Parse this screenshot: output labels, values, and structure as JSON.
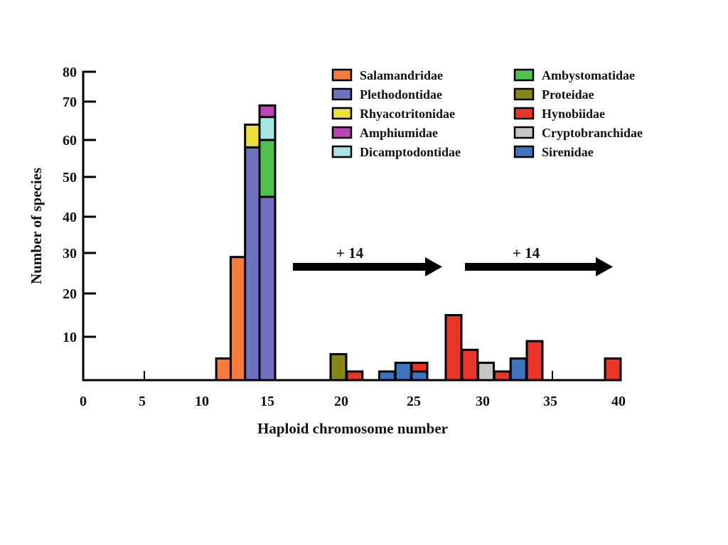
{
  "chart_data": {
    "type": "bar",
    "stacked": true,
    "title": "",
    "xlabel": "Haploid chromosome number",
    "ylabel": "Number of species",
    "xlim": [
      0,
      40
    ],
    "ylim": [
      0,
      80
    ],
    "x_ticks": [
      "0",
      "5",
      "10",
      "15",
      "20",
      "25",
      "30",
      "35",
      "40"
    ],
    "y_ticks": [
      "10",
      "20",
      "30",
      "40",
      "50",
      "60",
      "70",
      "80"
    ],
    "grid": false,
    "legend_position": "top-right",
    "series": [
      {
        "name": "Salamandridae",
        "color": "#f47c3c",
        "points": [
          {
            "x": 12,
            "y": 5
          },
          {
            "x": 13,
            "y": 29
          }
        ]
      },
      {
        "name": "Plethodontidae",
        "color": "#6f72c0",
        "points": [
          {
            "x": 14,
            "y": 58
          },
          {
            "x": 15,
            "y": 45
          }
        ]
      },
      {
        "name": "Rhyacotritonidae",
        "color": "#ede03a",
        "points": [
          {
            "x": 14,
            "y": 6
          }
        ]
      },
      {
        "name": "Amphiumidae",
        "color": "#b945b5",
        "points": [
          {
            "x": 15,
            "y": 3
          }
        ]
      },
      {
        "name": "Dicamptodontidae",
        "color": "#a6e6e2",
        "points": [
          {
            "x": 15,
            "y": 6
          }
        ]
      },
      {
        "name": "Ambystomatidae",
        "color": "#4fc24f",
        "points": [
          {
            "x": 15,
            "y": 15
          }
        ]
      },
      {
        "name": "Proteidae",
        "color": "#86861a",
        "points": [
          {
            "x": 20,
            "y": 6
          }
        ]
      },
      {
        "name": "Hynobiidae",
        "color": "#e8352a",
        "points": [
          {
            "x": 21,
            "y": 2
          },
          {
            "x": 25,
            "y": 2
          },
          {
            "x": 28,
            "y": 15
          },
          {
            "x": 29,
            "y": 7
          },
          {
            "x": 31,
            "y": 2
          },
          {
            "x": 33,
            "y": 9
          },
          {
            "x": 40,
            "y": 5
          }
        ]
      },
      {
        "name": "Cryptobranchidae",
        "color": "#c6c6c6",
        "points": [
          {
            "x": 30,
            "y": 4
          }
        ]
      },
      {
        "name": "Sirenidae",
        "color": "#3f74bc",
        "points": [
          {
            "x": 23,
            "y": 2
          },
          {
            "x": 24,
            "y": 4
          },
          {
            "x": 25,
            "y": 2
          },
          {
            "x": 32,
            "y": 5
          }
        ]
      }
    ],
    "stack_order": {
      "14": [
        "Plethodontidae",
        "Rhyacotritonidae"
      ],
      "15": [
        "Plethodontidae",
        "Ambystomatidae",
        "Dicamptodontidae",
        "Amphiumidae"
      ],
      "25": [
        "Sirenidae",
        "Hynobiidae"
      ]
    },
    "annotations": [
      {
        "text": "+ 14",
        "arrow_from_x": 16,
        "arrow_to_x": 27
      },
      {
        "text": "+ 14",
        "arrow_from_x": 28,
        "arrow_to_x": 39
      }
    ]
  }
}
